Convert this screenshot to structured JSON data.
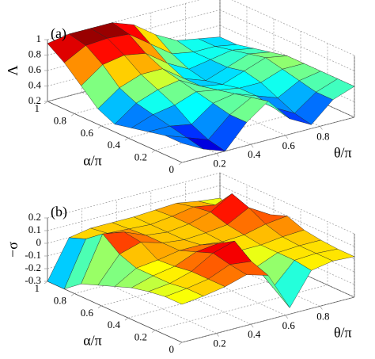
{
  "chart_data": [
    {
      "type": "surface",
      "panel_label": "(a)",
      "zlabel": "Λ",
      "xlabel": "θ/π",
      "ylabel": "α/π",
      "colormap": "jet",
      "grid": true,
      "xlim": [
        0,
        1
      ],
      "ylim": [
        0,
        1
      ],
      "zlim": [
        0.2,
        1
      ],
      "xticks": [
        0.2,
        0.4,
        0.6,
        0.8
      ],
      "yticks": [
        0,
        0.2,
        0.4,
        0.6,
        0.8,
        1
      ],
      "zticks": [
        0.2,
        0.4,
        0.6,
        0.8,
        1
      ],
      "x": [
        0,
        0.125,
        0.25,
        0.375,
        0.5,
        0.625,
        0.75,
        0.875,
        1
      ],
      "y": [
        0,
        0.125,
        0.25,
        0.375,
        0.5,
        0.625,
        0.75,
        0.875,
        1
      ],
      "z": [
        [
          0.45,
          0.3,
          0.2,
          0.5,
          0.7,
          0.4,
          0.25,
          0.5,
          0.6
        ],
        [
          0.45,
          0.35,
          0.25,
          0.5,
          0.65,
          0.45,
          0.3,
          0.5,
          0.6
        ],
        [
          0.4,
          0.4,
          0.35,
          0.55,
          0.6,
          0.5,
          0.4,
          0.55,
          0.6
        ],
        [
          0.35,
          0.45,
          0.5,
          0.6,
          0.55,
          0.5,
          0.5,
          0.6,
          0.6
        ],
        [
          0.3,
          0.5,
          0.6,
          0.65,
          0.5,
          0.45,
          0.55,
          0.65,
          0.6
        ],
        [
          0.4,
          0.6,
          0.7,
          0.7,
          0.5,
          0.4,
          0.5,
          0.6,
          0.55
        ],
        [
          0.6,
          0.8,
          0.85,
          0.8,
          0.6,
          0.45,
          0.5,
          0.55,
          0.5
        ],
        [
          0.8,
          0.95,
          0.97,
          0.95,
          0.75,
          0.55,
          0.5,
          0.5,
          0.45
        ],
        [
          0.95,
          1,
          1,
          1,
          0.9,
          0.7,
          0.55,
          0.5,
          0.45
        ]
      ]
    },
    {
      "type": "surface",
      "panel_label": "(b)",
      "zlabel": "−σ",
      "xlabel": "θ/π",
      "ylabel": "α/π",
      "colormap": "jet",
      "grid": true,
      "xlim": [
        0,
        1
      ],
      "ylim": [
        0,
        1
      ],
      "zlim": [
        -0.3,
        0.2
      ],
      "xticks": [
        0.2,
        0.4,
        0.6,
        0.8
      ],
      "yticks": [
        0,
        0.2,
        0.4,
        0.6,
        0.8,
        1
      ],
      "zticks": [
        -0.3,
        -0.2,
        -0.1,
        0,
        0.1,
        0.2
      ],
      "x": [
        0,
        0.125,
        0.25,
        0.375,
        0.5,
        0.625,
        0.75,
        0.875,
        1
      ],
      "y": [
        0,
        0.125,
        0.25,
        0.375,
        0.5,
        0.625,
        0.75,
        0.875,
        1
      ],
      "z": [
        [
          0.0,
          0.02,
          0.05,
          0.1,
          0.05,
          -0.25,
          0.0,
          0.03,
          0.02
        ],
        [
          0.0,
          0.02,
          0.05,
          0.12,
          0.1,
          -0.15,
          0.02,
          0.03,
          0.02
        ],
        [
          -0.02,
          0.0,
          0.05,
          0.15,
          0.2,
          -0.05,
          0.02,
          0.03,
          0.03
        ],
        [
          -0.05,
          0.0,
          0.03,
          0.1,
          0.12,
          0.02,
          0.02,
          0.04,
          0.05
        ],
        [
          -0.1,
          0.0,
          0.02,
          0.05,
          0.05,
          0.03,
          0.04,
          0.08,
          0.1
        ],
        [
          -0.15,
          0.05,
          0.1,
          0.05,
          0.03,
          0.04,
          0.06,
          0.15,
          0.05
        ],
        [
          -0.2,
          0.15,
          0.12,
          0.05,
          0.03,
          0.05,
          0.1,
          0.2,
          -0.1
        ],
        [
          -0.3,
          0.05,
          0.05,
          0.04,
          0.03,
          0.05,
          0.08,
          0.05,
          -0.05
        ],
        [
          -0.3,
          0.0,
          0.03,
          0.03,
          0.03,
          0.04,
          0.05,
          0.02,
          0.0
        ]
      ]
    }
  ]
}
